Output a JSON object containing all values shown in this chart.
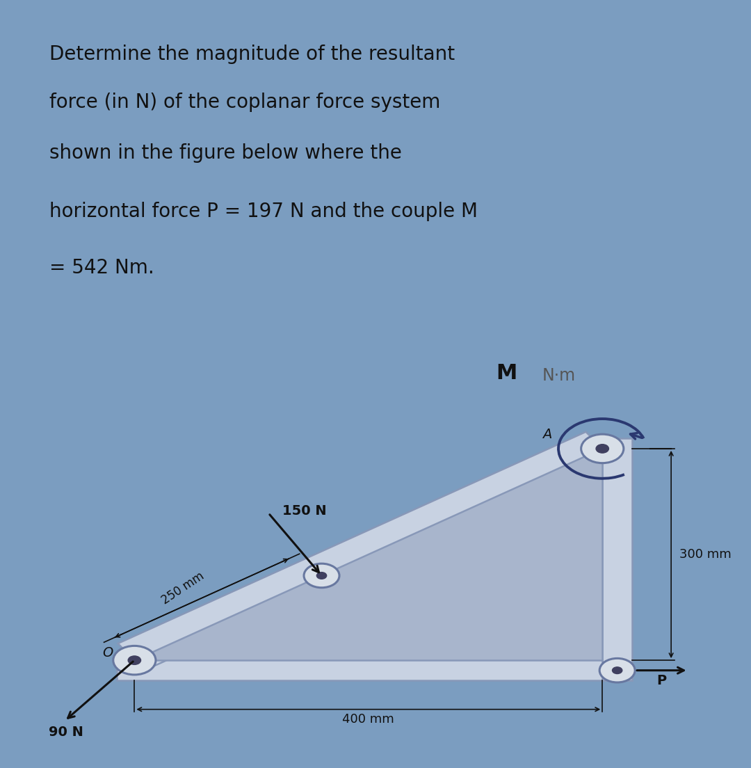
{
  "outer_bg": "#7b9dc0",
  "top_panel_bg": "#dde8f2",
  "bottom_panel_bg": "#e8eef5",
  "question_lines": [
    "Determine the magnitude of the resultant",
    "force (in N) of the coplanar force system",
    "shown in the figure below where the",
    "horizontal force P = 197 N and the couple M",
    "= 542 Nm."
  ],
  "shape_fill": "#a8b5cc",
  "frame_fill": "#c8d2e2",
  "frame_edge": "#8898b8",
  "pin_fill": "#d8dfe8",
  "pin_edge": "#6878a0",
  "pin_dot": "#404060",
  "arrow_color": "#2a3870",
  "moment_label": "M",
  "moment_units": "N·m",
  "label_A": "A",
  "label_O": "O",
  "label_150N": "150 N",
  "label_90N": "90 N",
  "label_P": "P",
  "label_250mm": "250 mm",
  "label_300mm": "300 mm",
  "label_400mm": "400 mm",
  "text_color": "#111111"
}
